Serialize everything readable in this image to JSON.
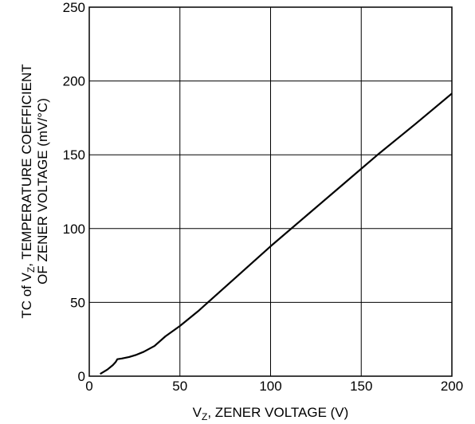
{
  "chart_data": {
    "type": "line",
    "title": "",
    "xlabel": {
      "prefix": "V",
      "sub": "Z",
      "rest": ", ZENER VOLTAGE (V)"
    },
    "ylabel": {
      "line1_prefix": "TC of V",
      "line1_sub": "Z",
      "line1_rest": ", TEMPERATURE COEFFICIENT",
      "line2": "OF ZENER VOLTAGE (mV/°C)"
    },
    "xlim": [
      0,
      200
    ],
    "ylim": [
      0,
      250
    ],
    "x_ticks": [
      "0",
      "50",
      "100",
      "150",
      "200"
    ],
    "y_ticks": [
      "0",
      "50",
      "100",
      "150",
      "200",
      "250"
    ],
    "grid": true,
    "series": [
      {
        "color": "#000000",
        "x": [
          6,
          10,
          13,
          14.5,
          15.5,
          18,
          22,
          26,
          30,
          36,
          42,
          50,
          60,
          80,
          100,
          120,
          140,
          160,
          180,
          200
        ],
        "y": [
          1.5,
          4.5,
          7.5,
          9.5,
          11.5,
          12,
          13,
          14.5,
          16.5,
          20.5,
          27,
          34,
          44,
          66,
          88,
          109,
          130,
          151,
          171,
          191.5
        ]
      }
    ]
  }
}
